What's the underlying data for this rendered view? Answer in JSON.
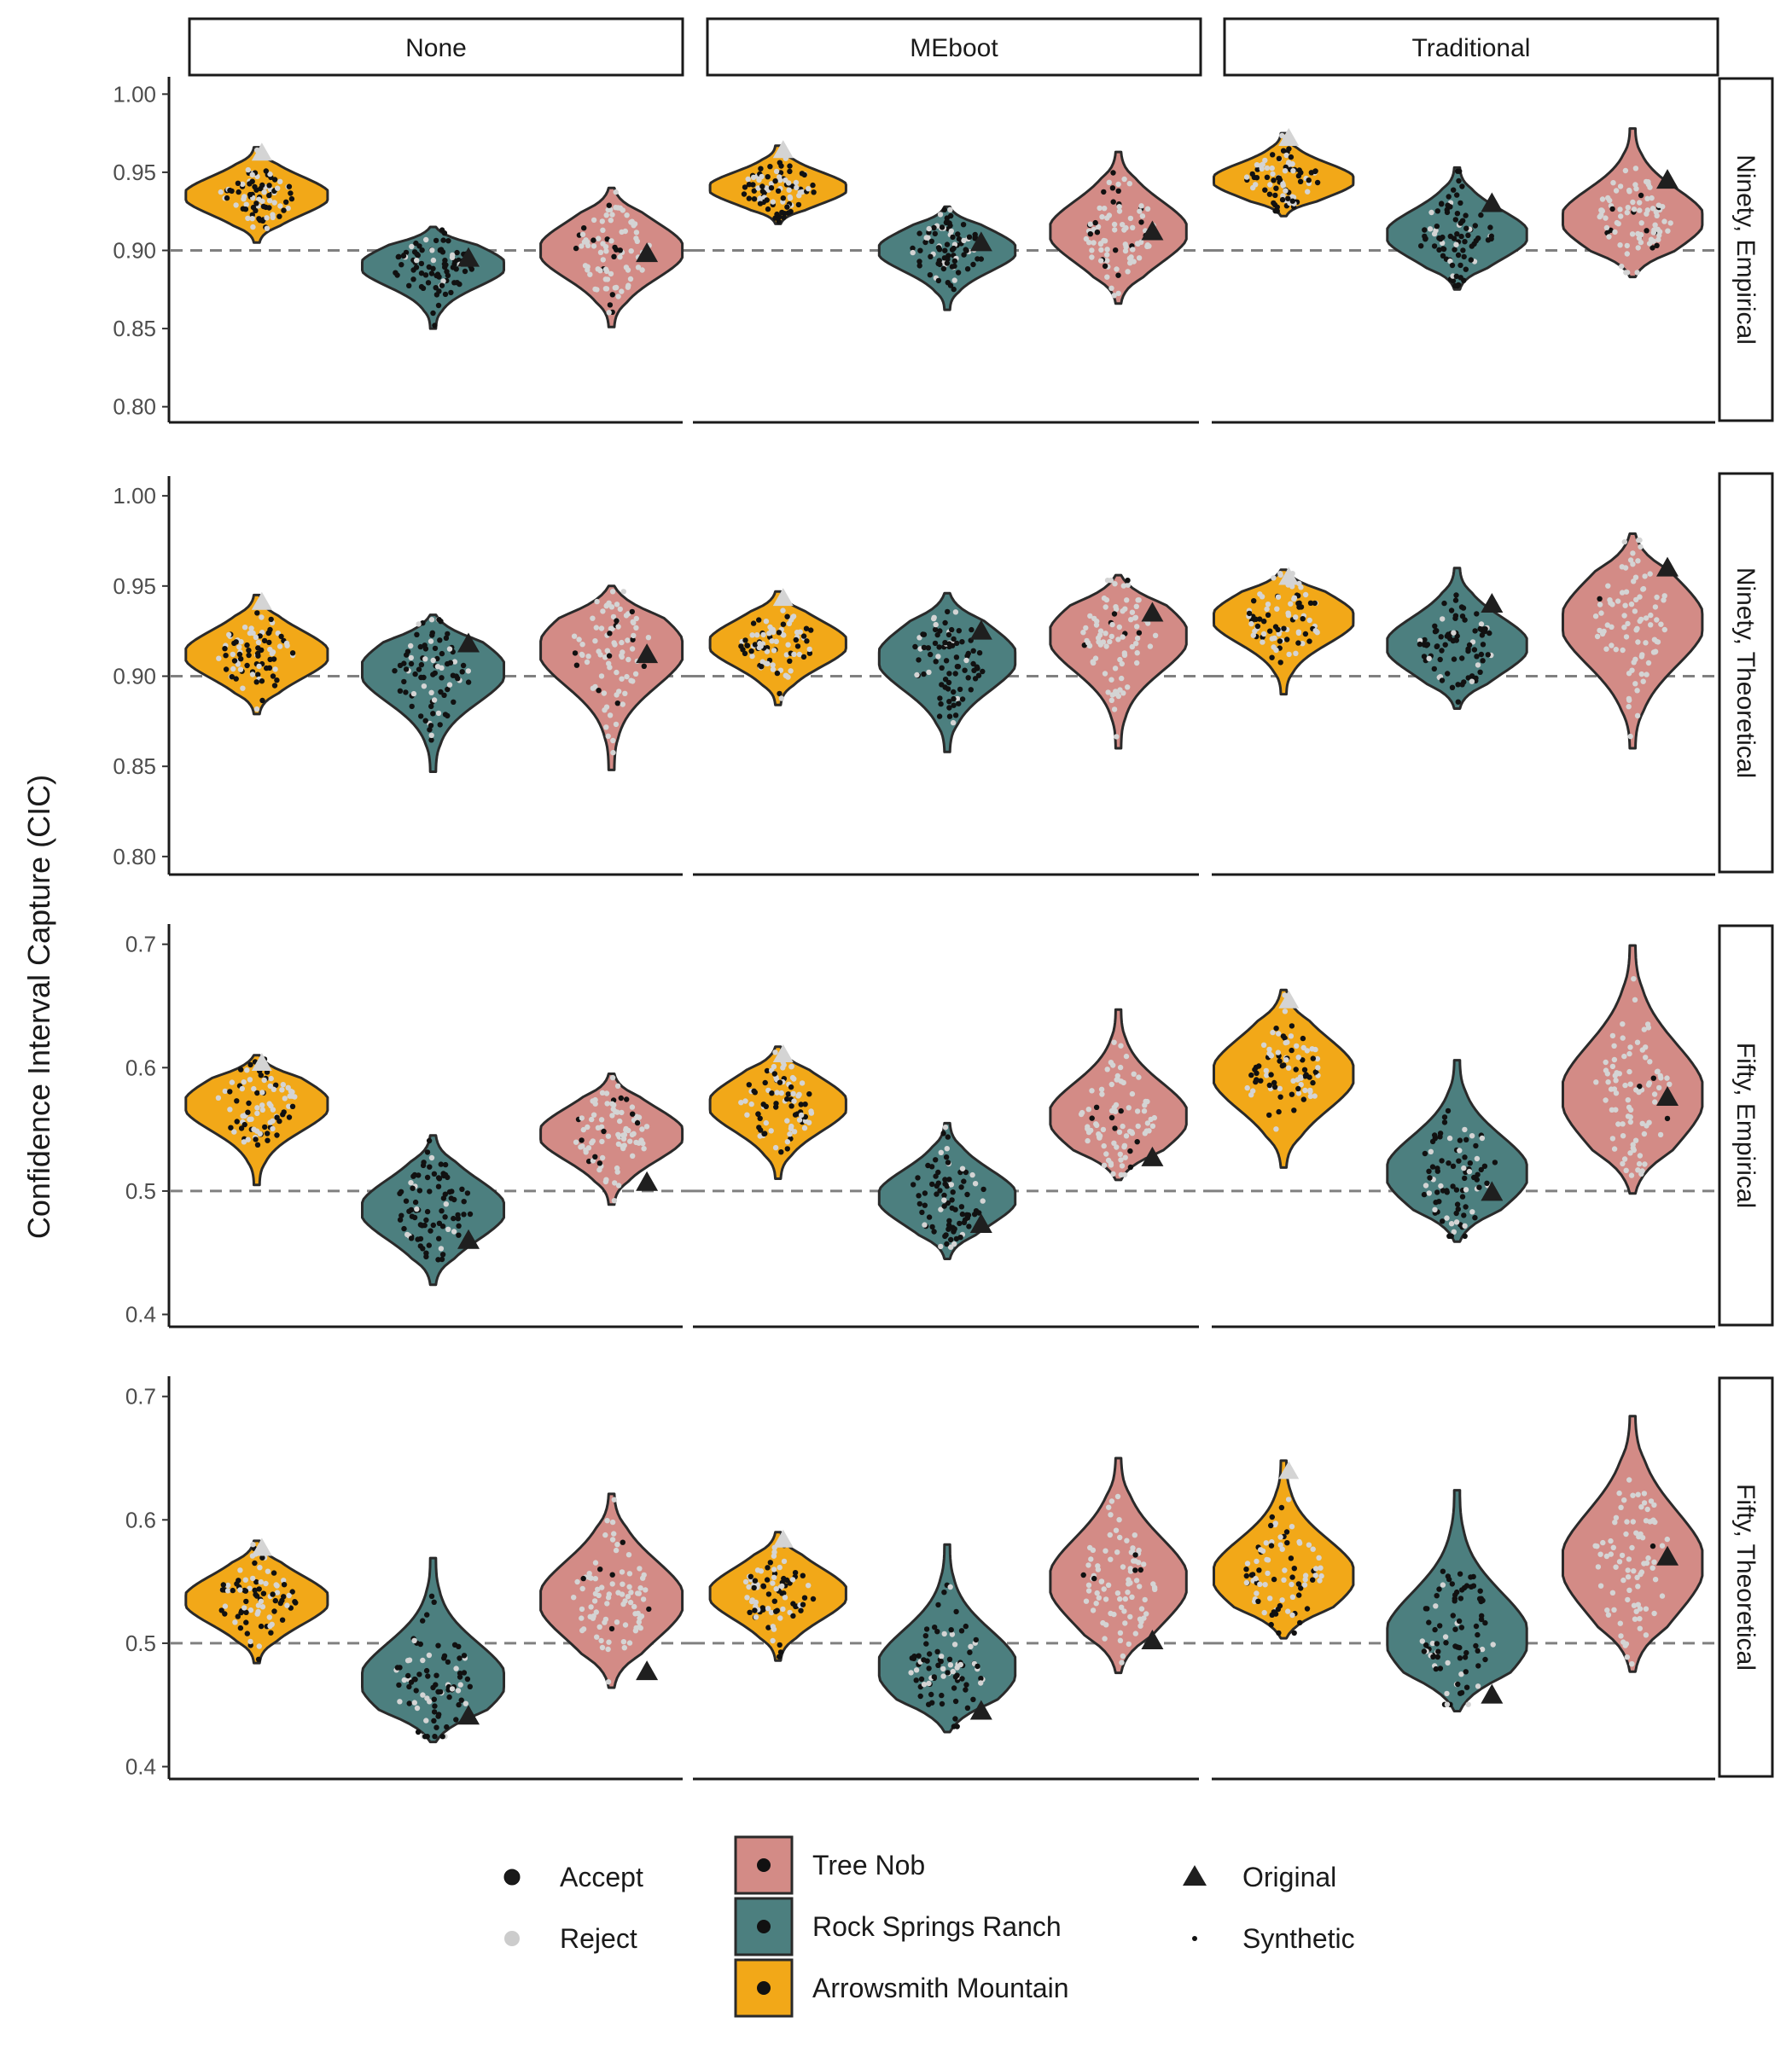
{
  "chart_data": {
    "type": "violin",
    "ylabel": "Confidence Interval Capture (CIC)",
    "columns": [
      "None",
      "MEboot",
      "Traditional"
    ],
    "rows": [
      {
        "label": "Ninety, Empirical",
        "ylim": [
          0.79,
          1.01
        ],
        "ticks": [
          "0.80",
          "0.85",
          "0.90",
          "0.95",
          "1.00"
        ],
        "reference": 0.9
      },
      {
        "label": "Ninety, Theoretical",
        "ylim": [
          0.79,
          1.01
        ],
        "ticks": [
          "0.80",
          "0.85",
          "0.90",
          "0.95",
          "1.00"
        ],
        "reference": 0.9
      },
      {
        "label": "Fifty, Empirical",
        "ylim": [
          0.39,
          0.715
        ],
        "ticks": [
          "0.4",
          "0.5",
          "0.6",
          "0.7"
        ],
        "reference": 0.5
      },
      {
        "label": "Fifty, Theoretical",
        "ylim": [
          0.39,
          0.715
        ],
        "ticks": [
          "0.4",
          "0.5",
          "0.6",
          "0.7"
        ],
        "reference": 0.5
      }
    ],
    "sites": [
      {
        "name": "Arrowsmith Mountain",
        "color": "#F2A818"
      },
      {
        "name": "Rock Springs Ranch",
        "color": "#4C7F7F"
      },
      {
        "name": "Tree Nob",
        "color": "#D38B86"
      }
    ],
    "panels": [
      [
        [
          {
            "min": 0.905,
            "max": 0.966,
            "mode": 0.935,
            "original": null,
            "accept_share": 0.6
          },
          {
            "min": 0.85,
            "max": 0.915,
            "mode": 0.89,
            "original": 0.895,
            "accept_share": 0.85
          },
          {
            "min": 0.851,
            "max": 0.94,
            "mode": 0.9,
            "original": 0.898,
            "accept_share": 0.15
          }
        ],
        [
          {
            "min": 0.917,
            "max": 0.967,
            "mode": 0.94,
            "original": null,
            "accept_share": 0.6
          },
          {
            "min": 0.862,
            "max": 0.928,
            "mode": 0.9,
            "original": 0.905,
            "accept_share": 0.85
          },
          {
            "min": 0.866,
            "max": 0.963,
            "mode": 0.912,
            "original": 0.912,
            "accept_share": 0.15
          }
        ],
        [
          {
            "min": 0.922,
            "max": 0.975,
            "mode": 0.945,
            "original": null,
            "accept_share": 0.6
          },
          {
            "min": 0.875,
            "max": 0.953,
            "mode": 0.91,
            "original": 0.93,
            "accept_share": 0.85
          },
          {
            "min": 0.883,
            "max": 0.978,
            "mode": 0.92,
            "original": 0.945,
            "accept_share": 0.1
          }
        ]
      ],
      [
        [
          {
            "min": 0.879,
            "max": 0.945,
            "mode": 0.912,
            "original": null,
            "accept_share": 0.55
          },
          {
            "min": 0.847,
            "max": 0.934,
            "mode": 0.903,
            "original": 0.918,
            "accept_share": 0.75
          },
          {
            "min": 0.848,
            "max": 0.95,
            "mode": 0.915,
            "original": 0.912,
            "accept_share": 0.15
          }
        ],
        [
          {
            "min": 0.884,
            "max": 0.947,
            "mode": 0.918,
            "original": null,
            "accept_share": 0.45
          },
          {
            "min": 0.858,
            "max": 0.946,
            "mode": 0.91,
            "original": 0.925,
            "accept_share": 0.8
          },
          {
            "min": 0.86,
            "max": 0.956,
            "mode": 0.922,
            "original": 0.935,
            "accept_share": 0.1
          }
        ],
        [
          {
            "min": 0.89,
            "max": 0.959,
            "mode": 0.932,
            "original": null,
            "accept_share": 0.55
          },
          {
            "min": 0.882,
            "max": 0.96,
            "mode": 0.917,
            "original": 0.94,
            "accept_share": 0.8
          },
          {
            "min": 0.86,
            "max": 0.979,
            "mode": 0.93,
            "original": 0.96,
            "accept_share": 0.05
          }
        ]
      ],
      [
        [
          {
            "min": 0.505,
            "max": 0.61,
            "mode": 0.57,
            "original": null,
            "accept_share": 0.5
          },
          {
            "min": 0.424,
            "max": 0.545,
            "mode": 0.485,
            "original": 0.46,
            "accept_share": 0.85
          },
          {
            "min": 0.489,
            "max": 0.595,
            "mode": 0.546,
            "original": 0.507,
            "accept_share": 0.1
          }
        ],
        [
          {
            "min": 0.51,
            "max": 0.617,
            "mode": 0.57,
            "original": null,
            "accept_share": 0.5
          },
          {
            "min": 0.445,
            "max": 0.555,
            "mode": 0.495,
            "original": 0.473,
            "accept_share": 0.85
          },
          {
            "min": 0.509,
            "max": 0.647,
            "mode": 0.56,
            "original": 0.527,
            "accept_share": 0.1
          }
        ],
        [
          {
            "min": 0.519,
            "max": 0.663,
            "mode": 0.595,
            "original": null,
            "accept_share": 0.5
          },
          {
            "min": 0.459,
            "max": 0.606,
            "mode": 0.515,
            "original": 0.499,
            "accept_share": 0.75
          },
          {
            "min": 0.498,
            "max": 0.699,
            "mode": 0.578,
            "original": 0.576,
            "accept_share": 0.05
          }
        ]
      ],
      [
        [
          {
            "min": 0.484,
            "max": 0.583,
            "mode": 0.535,
            "original": null,
            "accept_share": 0.55
          },
          {
            "min": 0.42,
            "max": 0.569,
            "mode": 0.47,
            "original": 0.441,
            "accept_share": 0.65
          },
          {
            "min": 0.464,
            "max": 0.621,
            "mode": 0.535,
            "original": 0.477,
            "accept_share": 0.05
          }
        ],
        [
          {
            "min": 0.486,
            "max": 0.59,
            "mode": 0.54,
            "original": null,
            "accept_share": 0.5
          },
          {
            "min": 0.428,
            "max": 0.58,
            "mode": 0.48,
            "original": 0.445,
            "accept_share": 0.7
          },
          {
            "min": 0.476,
            "max": 0.65,
            "mode": 0.55,
            "original": 0.502,
            "accept_share": 0.05
          }
        ],
        [
          {
            "min": 0.504,
            "max": 0.648,
            "mode": 0.555,
            "original": null,
            "accept_share": 0.45
          },
          {
            "min": 0.445,
            "max": 0.624,
            "mode": 0.505,
            "original": 0.458,
            "accept_share": 0.75
          },
          {
            "min": 0.477,
            "max": 0.684,
            "mode": 0.565,
            "original": 0.57,
            "accept_share": 0.05
          }
        ]
      ]
    ],
    "legend": {
      "points": [
        {
          "label": "Accept",
          "color": "#1a1a1a"
        },
        {
          "label": "Reject",
          "color": "#cccccc"
        }
      ],
      "fills": [
        {
          "label": "Tree Nob",
          "color": "#D38B86"
        },
        {
          "label": "Rock Springs Ranch",
          "color": "#4C7F7F"
        },
        {
          "label": "Arrowsmith Mountain",
          "color": "#F2A818"
        }
      ],
      "shapes": [
        {
          "label": "Original"
        },
        {
          "label": "Synthetic"
        }
      ]
    }
  }
}
